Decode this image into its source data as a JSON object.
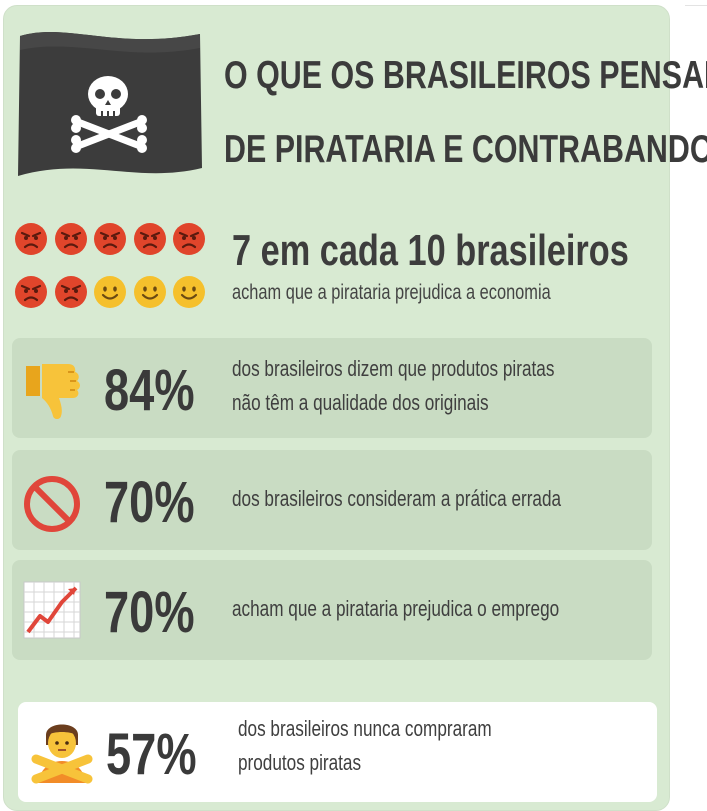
{
  "header": {
    "title_line1": "O QUE OS BRASILEIROS PENSAM",
    "title_line2": "DE PIRATARIA E CONTRABANDO?"
  },
  "intro": {
    "headline": "7 em cada 10 brasileiros",
    "subline": "acham que a pirataria prejudica a economia",
    "angry_faces": 7,
    "happy_faces": 3
  },
  "stats": [
    {
      "percent": "84%",
      "line1": "dos brasileiros dizem que produtos piratas",
      "line2": "não têm a qualidade dos originais",
      "icon": "thumbs-down-icon"
    },
    {
      "percent": "70%",
      "line1": "dos brasileiros consideram a prática errada",
      "line2": "",
      "icon": "prohibited-icon"
    },
    {
      "percent": "70%",
      "line1": "acham que a pirataria prejudica o emprego",
      "line2": "",
      "icon": "chart-increasing-icon"
    },
    {
      "percent": "57%",
      "line1": "dos brasileiros nunca compraram",
      "line2": "produtos piratas",
      "icon": "person-gesturing-no-icon"
    }
  ],
  "colors": {
    "background": "#d8ead2",
    "card": "#c9dcc3",
    "angry_face": "#e0452b",
    "happy_face": "#f5c02c",
    "text": "#3b3b3b"
  }
}
